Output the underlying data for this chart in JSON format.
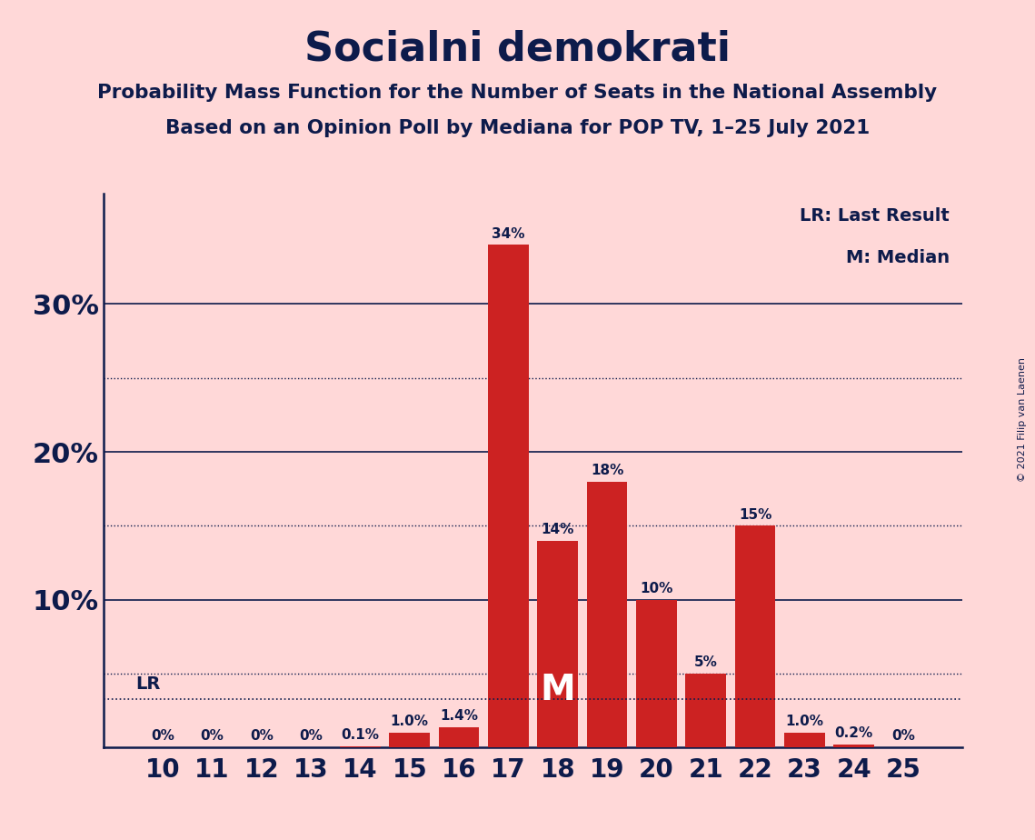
{
  "title": "Socialni demokrati",
  "subtitle1": "Probability Mass Function for the Number of Seats in the National Assembly",
  "subtitle2": "Based on an Opinion Poll by Mediana for POP TV, 1–25 July 2021",
  "copyright": "© 2021 Filip van Laenen",
  "seats": [
    10,
    11,
    12,
    13,
    14,
    15,
    16,
    17,
    18,
    19,
    20,
    21,
    22,
    23,
    24,
    25
  ],
  "probabilities": [
    0.0,
    0.0,
    0.0,
    0.0,
    0.001,
    0.01,
    0.014,
    0.34,
    0.14,
    0.18,
    0.1,
    0.05,
    0.15,
    0.01,
    0.002,
    0.0
  ],
  "labels": [
    "0%",
    "0%",
    "0%",
    "0%",
    "0.1%",
    "1.0%",
    "1.4%",
    "34%",
    "14%",
    "18%",
    "10%",
    "5%",
    "15%",
    "1.0%",
    "0.2%",
    "0%"
  ],
  "bar_color": "#CC2222",
  "background_color": "#FFD8D8",
  "text_color": "#0D1B4B",
  "median_seat": 18,
  "lr_value": 0.033,
  "yticks": [
    0.0,
    0.1,
    0.2,
    0.3
  ],
  "ytick_labels": [
    "",
    "10%",
    "20%",
    "30%"
  ],
  "solid_lines": [
    0.1,
    0.2,
    0.3
  ],
  "dotted_lines": [
    0.05,
    0.15,
    0.25
  ],
  "legend_lr": "LR: Last Result",
  "legend_m": "M: Median",
  "ylim": [
    0,
    0.375
  ]
}
